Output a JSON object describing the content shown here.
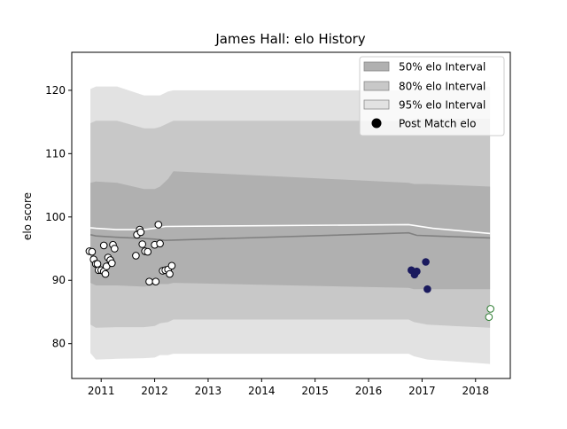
{
  "chart_data": {
    "type": "scatter",
    "title": "James Hall: elo History",
    "xlabel": "",
    "ylabel": "elo score",
    "xlim": [
      2010.45,
      2018.65
    ],
    "ylim": [
      74.5,
      126
    ],
    "x_ticks": [
      2011,
      2012,
      2013,
      2014,
      2015,
      2016,
      2017,
      2018
    ],
    "x_tick_labels": [
      "2011",
      "2012",
      "2013",
      "2014",
      "2015",
      "2016",
      "2017",
      "2018"
    ],
    "y_ticks": [
      80,
      90,
      100,
      110,
      120
    ],
    "y_tick_labels": [
      "80",
      "90",
      "100",
      "110",
      "120"
    ],
    "grid": false,
    "legend_position": "top-right",
    "legend": [
      {
        "label": "50% elo Interval",
        "kind": "patch",
        "color": "#b0b0b0"
      },
      {
        "label": "80% elo Interval",
        "kind": "patch",
        "color": "#c8c8c8"
      },
      {
        "label": "95% elo Interval",
        "kind": "patch",
        "color": "#e2e2e2"
      },
      {
        "label": "Post Match elo",
        "kind": "marker",
        "color": "#000000"
      }
    ],
    "bands": {
      "x": [
        2010.8,
        2010.9,
        2011.3,
        2011.8,
        2012.0,
        2012.1,
        2012.25,
        2012.35,
        2016.75,
        2016.85,
        2017.1,
        2018.27
      ],
      "p95_low": [
        78.5,
        77.5,
        77.6,
        77.7,
        77.8,
        78.2,
        78.2,
        78.4,
        78.4,
        78.0,
        77.5,
        76.8
      ],
      "p95_high": [
        120.2,
        120.6,
        120.6,
        119.2,
        119.2,
        119.2,
        119.8,
        120.0,
        120.0,
        120.4,
        120.4,
        120.6
      ],
      "p80_low": [
        83.0,
        82.5,
        82.6,
        82.6,
        82.8,
        83.2,
        83.4,
        83.8,
        83.8,
        83.4,
        83.0,
        82.5
      ],
      "p80_high": [
        114.8,
        115.2,
        115.2,
        114.0,
        114.0,
        114.2,
        114.8,
        115.2,
        115.2,
        115.5,
        115.5,
        115.5
      ],
      "p50_low": [
        89.6,
        89.2,
        89.2,
        89.0,
        89.2,
        89.4,
        89.4,
        89.6,
        88.8,
        88.6,
        88.6,
        88.6
      ],
      "p50_high": [
        105.4,
        105.6,
        105.4,
        104.4,
        104.4,
        104.8,
        106.0,
        107.2,
        105.4,
        105.2,
        105.2,
        104.8
      ]
    },
    "mean_line": {
      "color": "#808080",
      "x": [
        2010.8,
        2010.9,
        2011.3,
        2011.8,
        2012.0,
        2012.2,
        2016.75,
        2016.9,
        2017.2,
        2018.27
      ],
      "y": [
        97.2,
        97.0,
        96.8,
        96.6,
        96.5,
        96.3,
        97.5,
        97.1,
        97.0,
        96.7
      ]
    },
    "median_line": {
      "color": "#ffffff",
      "x": [
        2010.8,
        2010.9,
        2011.3,
        2011.8,
        2012.0,
        2012.2,
        2016.75,
        2016.9,
        2017.2,
        2018.27
      ],
      "y": [
        98.3,
        98.2,
        98.0,
        98.0,
        98.2,
        98.5,
        98.8,
        98.6,
        98.2,
        97.4
      ]
    },
    "series": [
      {
        "marker_fill": "#ffffff",
        "marker_edge": "#000000",
        "points": [
          [
            2010.78,
            94.6
          ],
          [
            2010.83,
            94.5
          ],
          [
            2010.86,
            93.3
          ],
          [
            2010.9,
            92.6
          ],
          [
            2010.93,
            92.6
          ],
          [
            2010.95,
            91.6
          ],
          [
            2011.0,
            91.6
          ],
          [
            2011.05,
            91.4
          ],
          [
            2011.08,
            91.0
          ],
          [
            2011.05,
            95.5
          ],
          [
            2011.1,
            92.2
          ],
          [
            2011.13,
            93.6
          ],
          [
            2011.17,
            93.2
          ],
          [
            2011.2,
            92.7
          ],
          [
            2011.22,
            95.6
          ],
          [
            2011.25,
            95.0
          ],
          [
            2011.65,
            93.9
          ],
          [
            2011.67,
            97.2
          ],
          [
            2011.72,
            98.0
          ],
          [
            2011.74,
            97.6
          ],
          [
            2011.77,
            95.7
          ],
          [
            2011.82,
            94.6
          ],
          [
            2011.87,
            94.5
          ],
          [
            2011.9,
            89.8
          ],
          [
            2012.0,
            95.6
          ],
          [
            2012.02,
            89.8
          ],
          [
            2012.07,
            98.8
          ],
          [
            2012.1,
            95.8
          ],
          [
            2012.15,
            91.5
          ],
          [
            2012.2,
            91.6
          ],
          [
            2012.25,
            91.7
          ],
          [
            2012.28,
            91.0
          ],
          [
            2012.32,
            92.3
          ]
        ]
      },
      {
        "marker_fill": "#1a1a5e",
        "marker_edge": "#1a1a5e",
        "points": [
          [
            2016.8,
            91.6
          ],
          [
            2016.86,
            90.9
          ],
          [
            2016.9,
            91.4
          ],
          [
            2017.07,
            92.9
          ],
          [
            2017.1,
            88.6
          ]
        ]
      },
      {
        "marker_fill": "#ffffff",
        "marker_edge": "#2e7d32",
        "points": [
          [
            2018.25,
            84.2
          ],
          [
            2018.28,
            85.5
          ]
        ]
      }
    ]
  }
}
